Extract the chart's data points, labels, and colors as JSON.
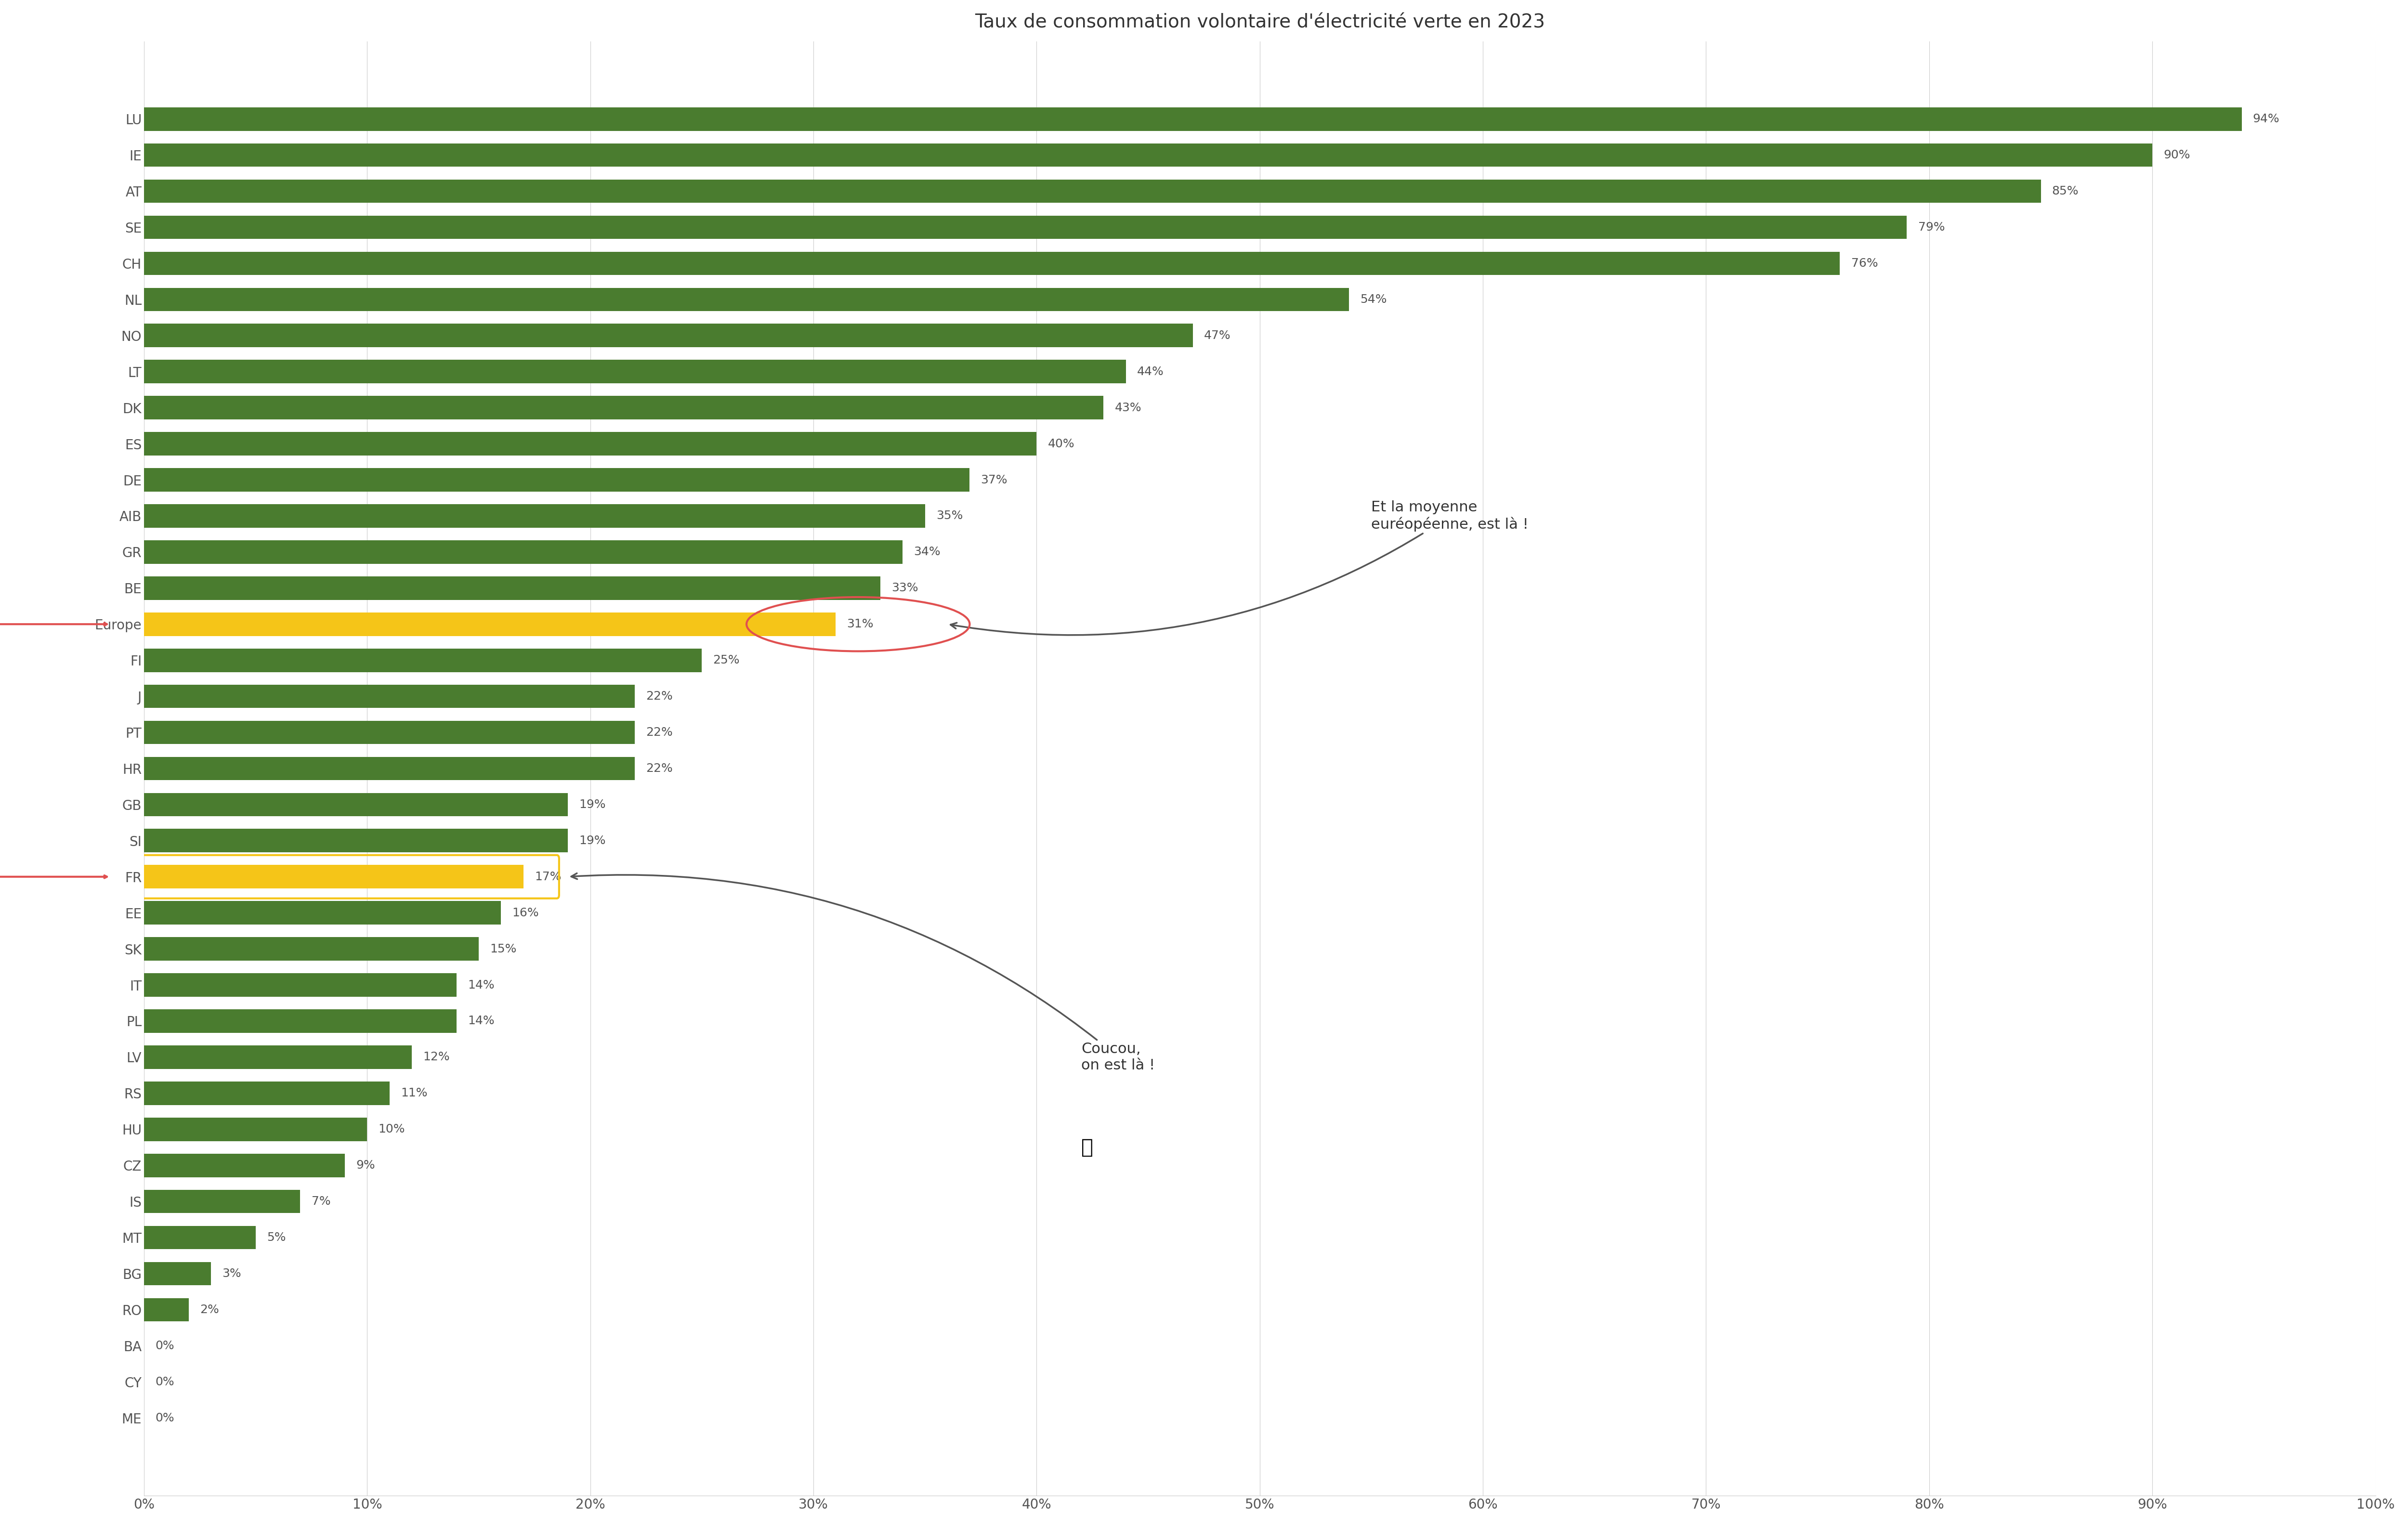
{
  "title": "Taux de consommation volontaire d'électricité verte en 2023",
  "categories": [
    "LU",
    "IE",
    "AT",
    "SE",
    "CH",
    "NL",
    "NO",
    "LT",
    "DK",
    "ES",
    "DE",
    "AIB",
    "GR",
    "BE",
    "Europe",
    "FI",
    "J",
    "PT",
    "HR",
    "GB",
    "SI",
    "FR",
    "EE",
    "SK",
    "IT",
    "PL",
    "LV",
    "RS",
    "HU",
    "CZ",
    "IS",
    "MT",
    "BG",
    "RO",
    "BA",
    "CY",
    "ME"
  ],
  "values": [
    94,
    90,
    85,
    79,
    76,
    54,
    47,
    44,
    43,
    40,
    37,
    35,
    34,
    33,
    31,
    25,
    22,
    22,
    22,
    19,
    19,
    17,
    16,
    15,
    14,
    14,
    12,
    11,
    10,
    9,
    7,
    5,
    3,
    2,
    0,
    0,
    0
  ],
  "bar_colors": [
    "#4a7c2f",
    "#4a7c2f",
    "#4a7c2f",
    "#4a7c2f",
    "#4a7c2f",
    "#4a7c2f",
    "#4a7c2f",
    "#4a7c2f",
    "#4a7c2f",
    "#4a7c2f",
    "#4a7c2f",
    "#4a7c2f",
    "#4a7c2f",
    "#4a7c2f",
    "#f5c518",
    "#4a7c2f",
    "#4a7c2f",
    "#4a7c2f",
    "#4a7c2f",
    "#4a7c2f",
    "#4a7c2f",
    "#f5c518",
    "#4a7c2f",
    "#4a7c2f",
    "#4a7c2f",
    "#4a7c2f",
    "#4a7c2f",
    "#4a7c2f",
    "#4a7c2f",
    "#4a7c2f",
    "#4a7c2f",
    "#4a7c2f",
    "#4a7c2f",
    "#4a7c2f",
    "#4a7c2f",
    "#4a7c2f",
    "#4a7c2f"
  ],
  "xlim": [
    0,
    100
  ],
  "xticks": [
    0,
    10,
    20,
    30,
    40,
    50,
    60,
    70,
    80,
    90,
    100
  ],
  "xtick_labels": [
    "0%",
    "10%",
    "20%",
    "30%",
    "40%",
    "50%",
    "60%",
    "70%",
    "80%",
    "90%",
    "100%"
  ],
  "background_color": "#ffffff",
  "bar_height": 0.65,
  "title_fontsize": 28,
  "tick_fontsize": 20,
  "label_fontsize": 20,
  "value_fontsize": 18,
  "highlighted_rows": [
    "Europe",
    "FR"
  ],
  "arrow_europe_label": "Et la moyenne\neuréopéenne, est là !",
  "arrow_fr_label": "Coucou,\non est là !",
  "europe_circle_color": "#e05050",
  "arrow_color": "#555555",
  "highlighted_label_color": "#e05050"
}
